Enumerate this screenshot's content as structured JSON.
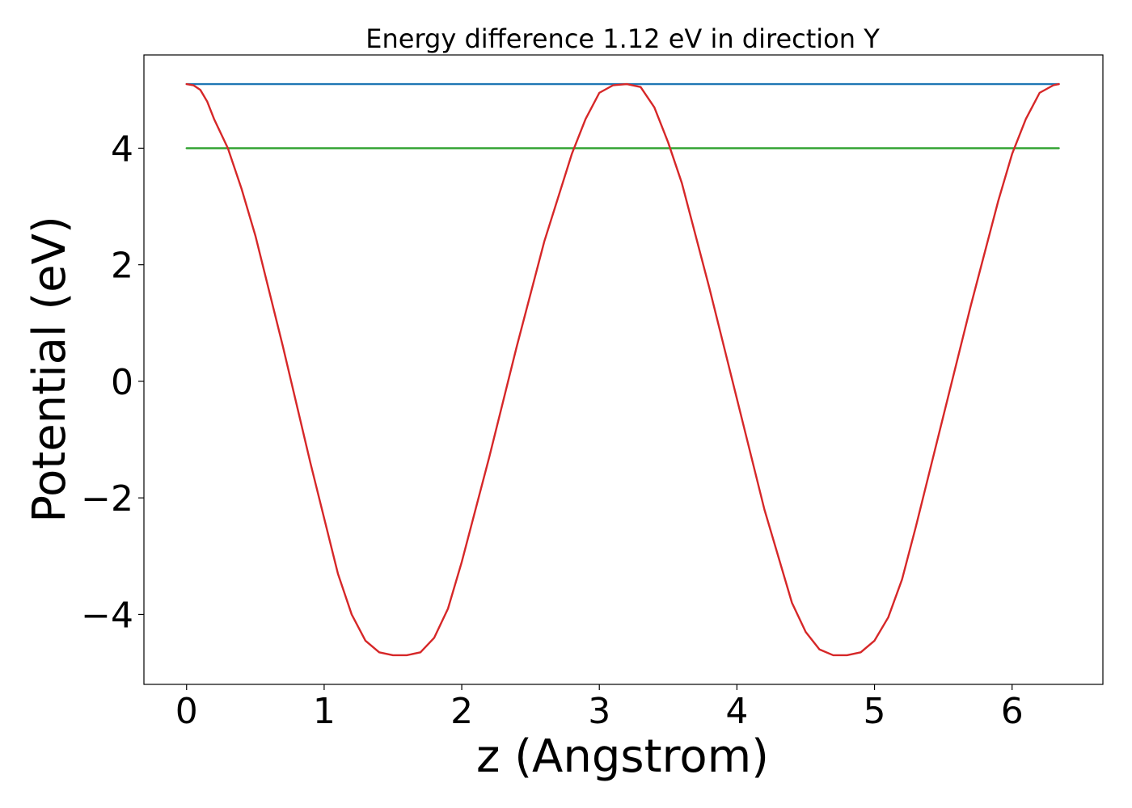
{
  "chart_data": {
    "type": "line",
    "title": "Energy difference 1.12 eV in direction Y",
    "xlabel": "z (Angstrom)",
    "ylabel": "Potential (eV)",
    "xlim": [
      -0.31,
      6.66
    ],
    "ylim": [
      -5.2,
      5.6
    ],
    "xticks": [
      0,
      1,
      2,
      3,
      4,
      5,
      6
    ],
    "xtick_labels": [
      "0",
      "1",
      "2",
      "3",
      "4",
      "5",
      "6"
    ],
    "yticks": [
      -4,
      -2,
      0,
      2,
      4
    ],
    "ytick_labels": [
      "−4",
      "−2",
      "0",
      "2",
      "4"
    ],
    "grid": false,
    "series": [
      {
        "kind": "constant",
        "color": "#1f77b4",
        "x": [
          0,
          6.34
        ],
        "y": [
          5.1,
          5.1
        ]
      },
      {
        "kind": "constant",
        "color": "#2ca02c",
        "x": [
          0,
          6.34
        ],
        "y": [
          4.0,
          4.0
        ]
      },
      {
        "kind": "curve",
        "color": "#d62728",
        "x": [
          0.0,
          0.05,
          0.1,
          0.15,
          0.2,
          0.3,
          0.4,
          0.5,
          0.7,
          0.9,
          1.1,
          1.2,
          1.3,
          1.4,
          1.5,
          1.6,
          1.7,
          1.8,
          1.9,
          2.0,
          2.2,
          2.4,
          2.6,
          2.8,
          2.9,
          3.0,
          3.1,
          3.2,
          3.3,
          3.4,
          3.5,
          3.6,
          3.8,
          4.0,
          4.2,
          4.4,
          4.5,
          4.6,
          4.7,
          4.8,
          4.9,
          5.0,
          5.1,
          5.2,
          5.3,
          5.5,
          5.7,
          5.9,
          6.0,
          6.1,
          6.2,
          6.3,
          6.34
        ],
        "y": [
          5.1,
          5.08,
          5.0,
          4.8,
          4.5,
          4.0,
          3.3,
          2.5,
          0.6,
          -1.4,
          -3.3,
          -4.0,
          -4.45,
          -4.65,
          -4.7,
          -4.7,
          -4.65,
          -4.4,
          -3.9,
          -3.1,
          -1.3,
          0.6,
          2.4,
          3.9,
          4.5,
          4.95,
          5.08,
          5.1,
          5.05,
          4.7,
          4.1,
          3.4,
          1.6,
          -0.3,
          -2.2,
          -3.8,
          -4.3,
          -4.6,
          -4.7,
          -4.7,
          -4.65,
          -4.45,
          -4.05,
          -3.4,
          -2.5,
          -0.6,
          1.3,
          3.1,
          3.9,
          4.5,
          4.95,
          5.08,
          5.1
        ]
      }
    ]
  }
}
